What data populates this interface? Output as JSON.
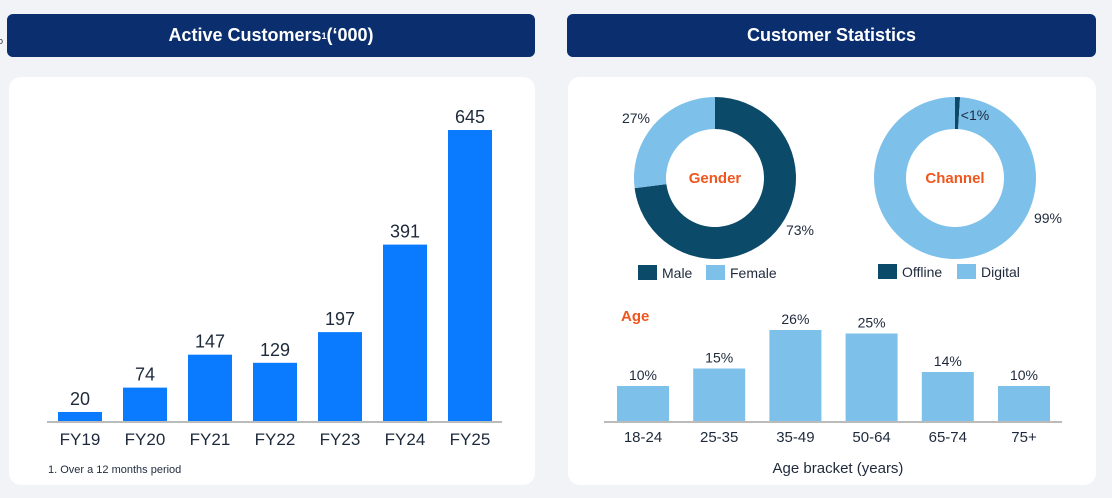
{
  "headers": {
    "left_title": "Active Customers",
    "left_sup": "1",
    "left_suffix": " (‘000)",
    "right_title": "Customer Statistics"
  },
  "footnote": "1.   Over a 12 months period",
  "colors": {
    "header_bg": "#0a2e6e",
    "bar_blue": "#0a7bff",
    "light_blue": "#7dc0ea",
    "dark_teal": "#0c4a6a",
    "orange": "#f0561e"
  },
  "chart_data": [
    {
      "type": "bar",
      "title": "Active Customers (‘000)",
      "categories": [
        "FY19",
        "FY20",
        "FY21",
        "FY22",
        "FY23",
        "FY24",
        "FY25"
      ],
      "values": [
        20,
        74,
        147,
        129,
        197,
        391,
        645
      ],
      "ylim": [
        0,
        700
      ],
      "grid": false
    },
    {
      "type": "pie",
      "title": "Gender",
      "labels": [
        "Male",
        "Female"
      ],
      "values": [
        73,
        27
      ],
      "value_labels": [
        "73%",
        "27%"
      ],
      "legend_position": "bottom"
    },
    {
      "type": "pie",
      "title": "Channel",
      "labels": [
        "Offline",
        "Digital"
      ],
      "values": [
        1,
        99
      ],
      "value_labels": [
        "<1%",
        "99%"
      ],
      "legend_position": "bottom"
    },
    {
      "type": "bar",
      "title": "Age",
      "xlabel": "Age bracket (years)",
      "categories": [
        "18-24",
        "25-35",
        "35-49",
        "50-64",
        "65-74",
        "75+"
      ],
      "values": [
        10,
        15,
        26,
        25,
        14,
        10
      ],
      "value_labels": [
        "10%",
        "15%",
        "26%",
        "25%",
        "14%",
        "10%"
      ],
      "ylim": [
        0,
        30
      ]
    }
  ]
}
